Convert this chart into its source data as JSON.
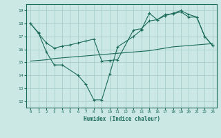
{
  "bg_color": "#cce8e5",
  "grid_color": "#a0c8c4",
  "line_color": "#1a6b5a",
  "xlabel": "Humidex (Indice chaleur)",
  "ylim": [
    11.5,
    19.5
  ],
  "xlim": [
    -0.5,
    23.5
  ],
  "yticks": [
    12,
    13,
    14,
    15,
    16,
    17,
    18,
    19
  ],
  "xticks": [
    0,
    1,
    2,
    3,
    4,
    5,
    6,
    7,
    8,
    9,
    10,
    11,
    12,
    13,
    14,
    15,
    16,
    17,
    18,
    19,
    20,
    21,
    22,
    23
  ],
  "line1_x": [
    0,
    1,
    2,
    3,
    4,
    6,
    7,
    8,
    9,
    10,
    11,
    13,
    14,
    15,
    16,
    17,
    18,
    19,
    20,
    21,
    22,
    23
  ],
  "line1_y": [
    18.0,
    17.3,
    15.8,
    14.8,
    14.8,
    14.0,
    13.3,
    12.1,
    12.1,
    14.1,
    16.2,
    17.0,
    17.5,
    18.8,
    18.3,
    18.6,
    18.8,
    19.0,
    18.7,
    18.5,
    17.0,
    16.3
  ],
  "line2_x": [
    0,
    1,
    2,
    3,
    4,
    5,
    6,
    7,
    8,
    9,
    10,
    11,
    12,
    13,
    14,
    15,
    16,
    17,
    18,
    19,
    20,
    21,
    22,
    23
  ],
  "line2_y": [
    15.1,
    15.15,
    15.2,
    15.3,
    15.35,
    15.4,
    15.45,
    15.5,
    15.55,
    15.6,
    15.65,
    15.7,
    15.75,
    15.8,
    15.85,
    15.9,
    16.0,
    16.1,
    16.2,
    16.25,
    16.3,
    16.35,
    16.4,
    16.45
  ],
  "line3_x": [
    0,
    1,
    2,
    3,
    4,
    5,
    6,
    7,
    8,
    9,
    10,
    11,
    13,
    14,
    15,
    16,
    17,
    18,
    19,
    20,
    21,
    22,
    23
  ],
  "line3_y": [
    18.0,
    17.25,
    16.5,
    16.1,
    16.25,
    16.35,
    16.5,
    16.65,
    16.8,
    15.1,
    15.15,
    15.2,
    17.5,
    17.6,
    18.2,
    18.3,
    18.7,
    18.75,
    18.9,
    18.5,
    18.5,
    17.0,
    16.3
  ],
  "figsize": [
    3.2,
    2.0
  ],
  "dpi": 100
}
